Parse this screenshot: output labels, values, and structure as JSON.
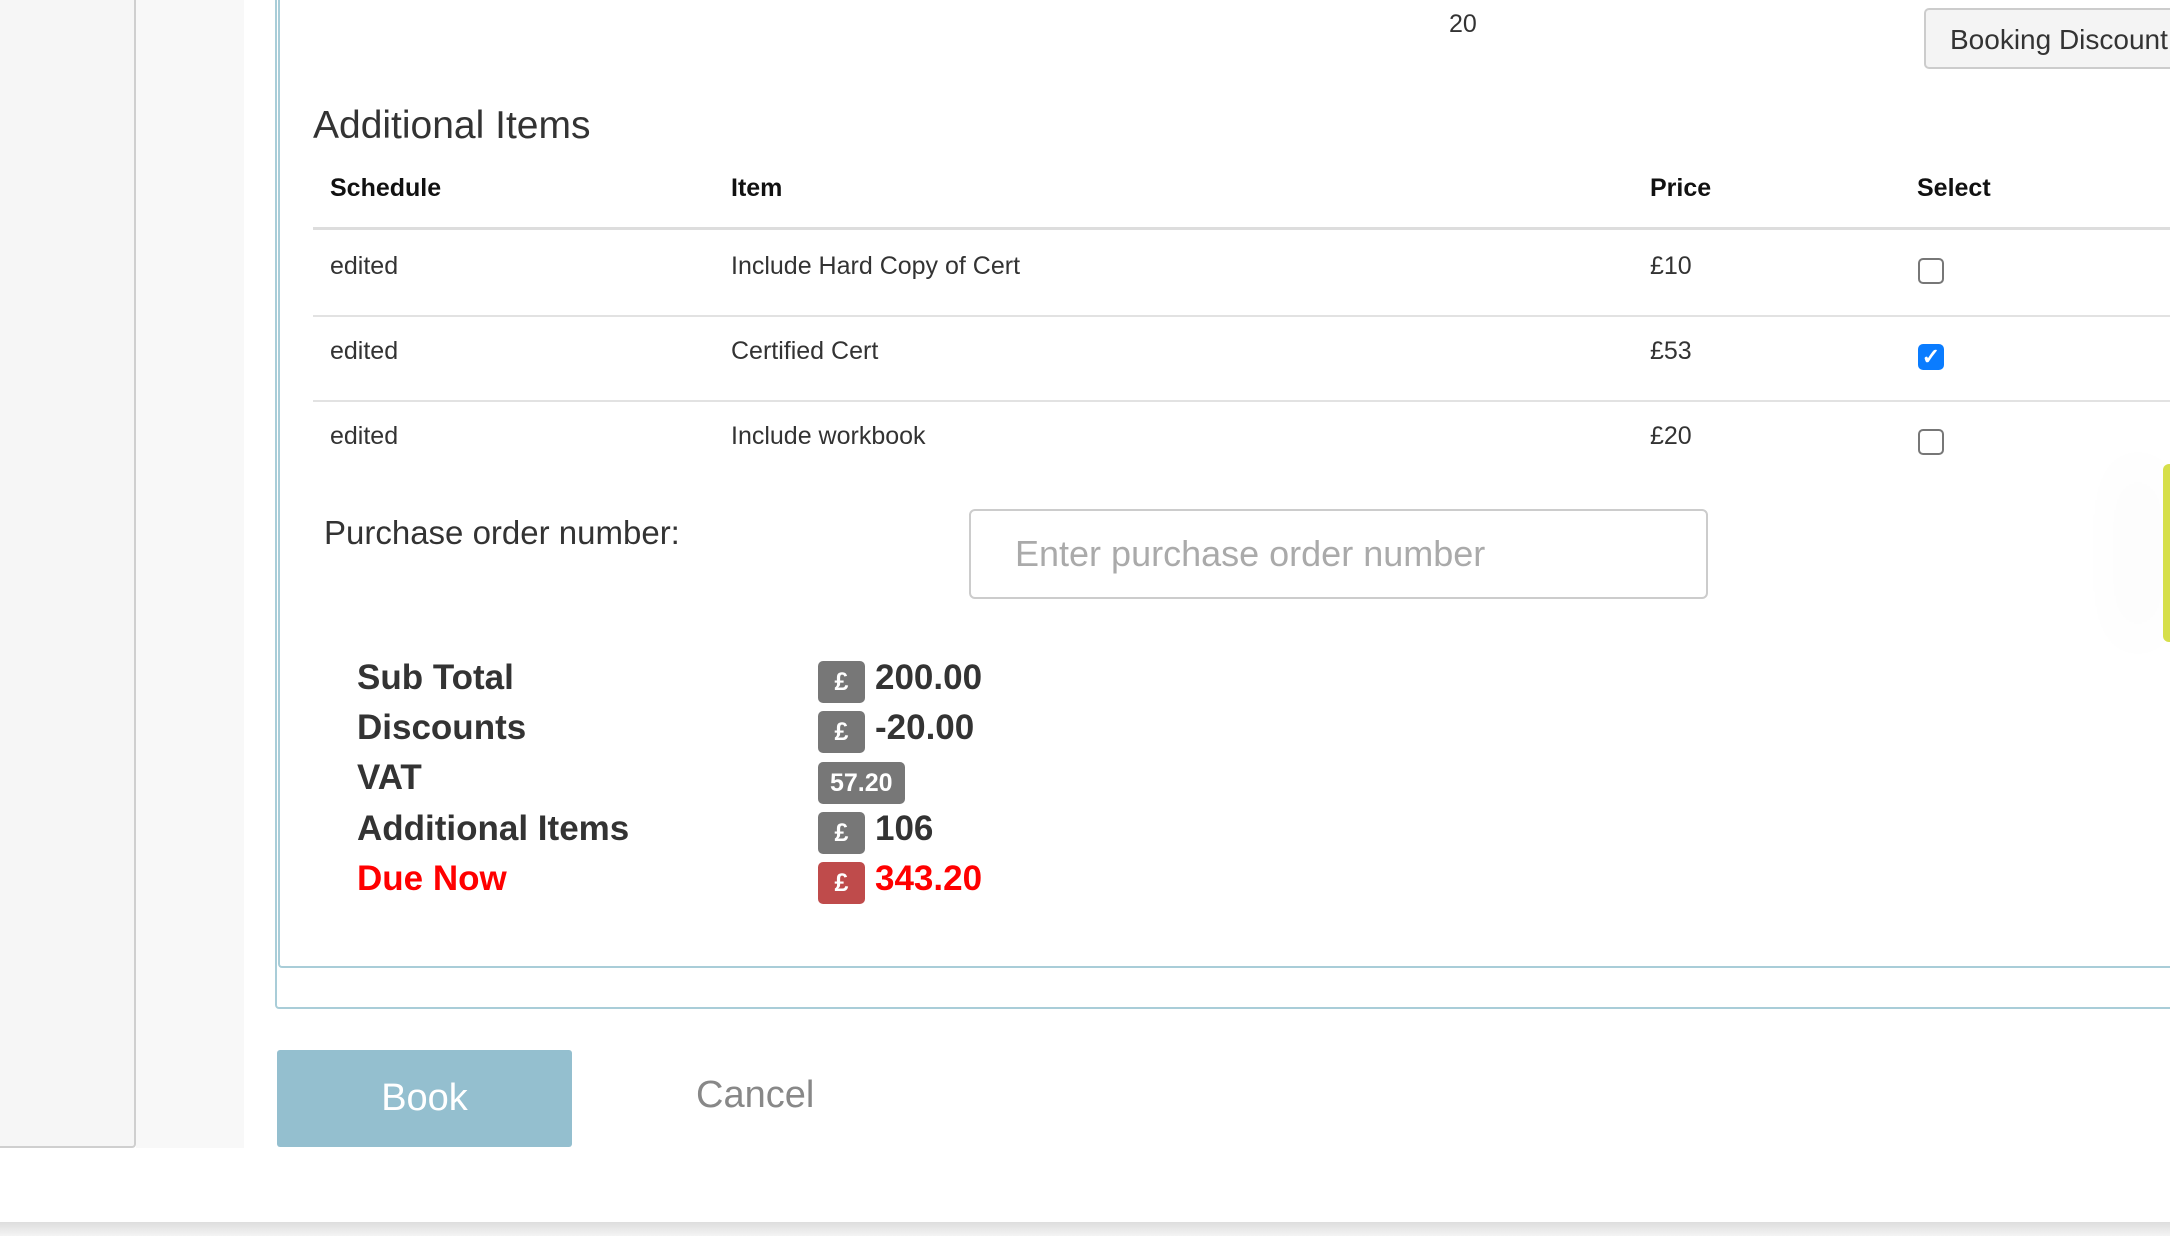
{
  "header": {
    "count": "20",
    "booking_discount_label": "Booking Discount"
  },
  "additional_items": {
    "title": "Additional Items",
    "columns": [
      "Schedule",
      "Item",
      "Price",
      "Select"
    ],
    "rows": [
      {
        "schedule": "edited",
        "item": "Include Hard Copy of Cert",
        "price": "£10",
        "selected": false
      },
      {
        "schedule": "edited",
        "item": "Certified Cert",
        "price": "£53",
        "selected": true
      },
      {
        "schedule": "edited",
        "item": "Include workbook",
        "price": "£20",
        "selected": false
      }
    ]
  },
  "purchase_order": {
    "label": "Purchase order number:",
    "value": "",
    "placeholder": "Enter purchase order number"
  },
  "summary": {
    "currency_symbol": "£",
    "sub_total": {
      "label": "Sub Total",
      "value": "200.00"
    },
    "discounts": {
      "label": "Discounts",
      "value": "-20.00"
    },
    "vat": {
      "label": "VAT",
      "value": "57.20"
    },
    "additional_items": {
      "label": "Additional Items",
      "value": "106"
    },
    "due_now": {
      "label": "Due Now",
      "value": "343.20"
    }
  },
  "actions": {
    "book_label": "Book",
    "cancel_label": "Cancel"
  },
  "colors": {
    "accent": "#94bfcf",
    "due": "#ff0000",
    "checkbox": "#0a7cff",
    "side_tab": "#d6df4a"
  }
}
